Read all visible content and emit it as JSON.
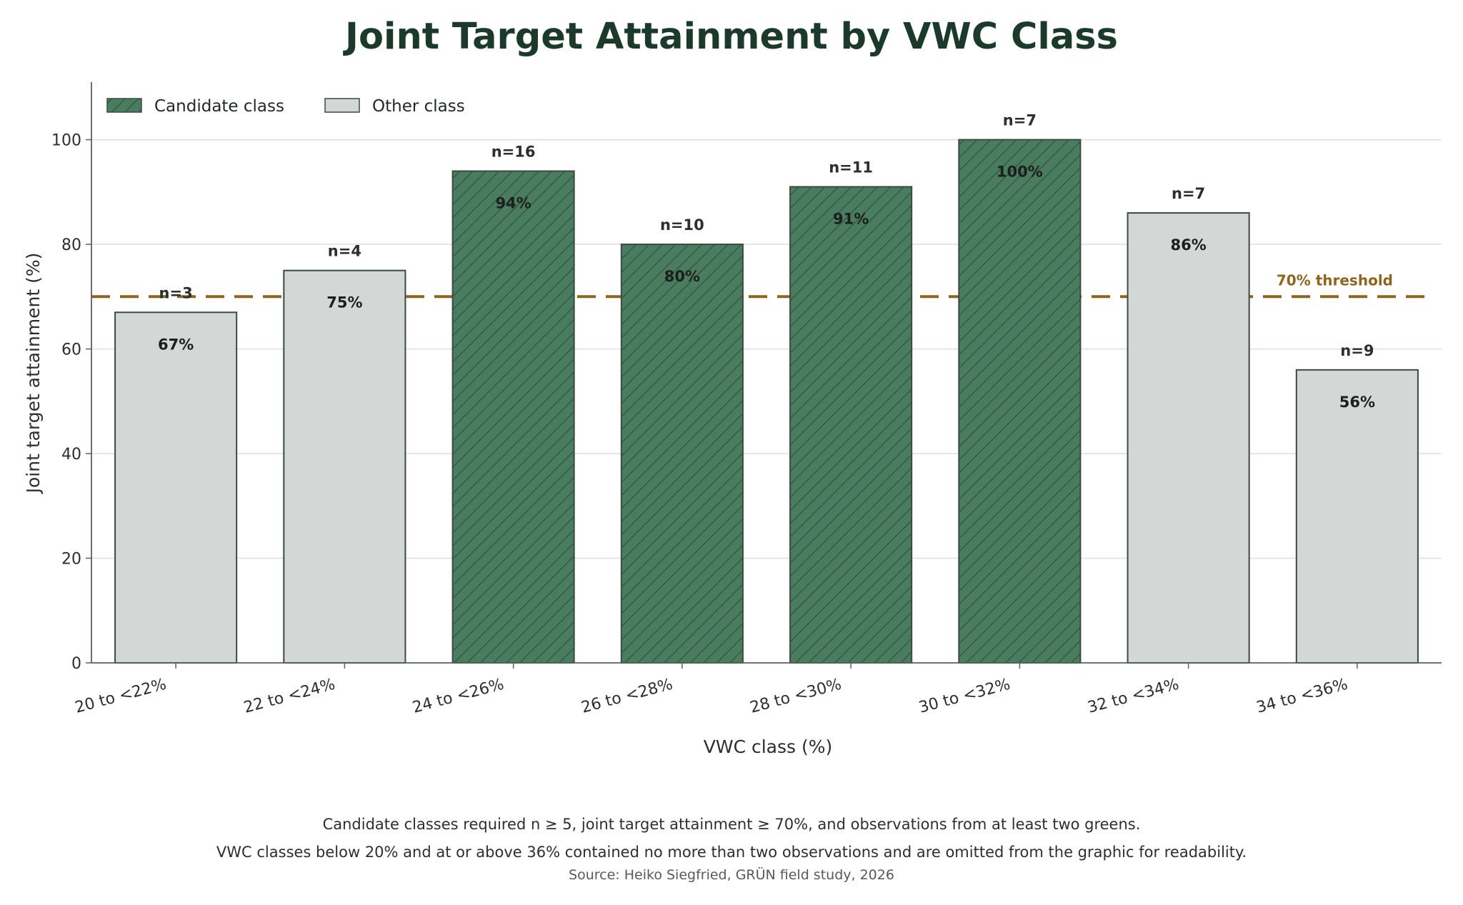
{
  "chart_data": {
    "type": "bar",
    "title": "Joint Target Attainment by VWC Class",
    "xlabel": "VWC class (%)",
    "ylabel": "Joint target attainment (%)",
    "ylim": [
      0,
      111
    ],
    "yticks": [
      0,
      20,
      40,
      60,
      80,
      100
    ],
    "grid": "horizontal",
    "categories": [
      "20 to <22%",
      "22 to <24%",
      "24 to <26%",
      "26 to <28%",
      "28 to <30%",
      "30 to <32%",
      "32 to <34%",
      "34 to <36%"
    ],
    "values": [
      67,
      75,
      94,
      80,
      91,
      100,
      86,
      56
    ],
    "value_labels": [
      "67%",
      "75%",
      "94%",
      "80%",
      "91%",
      "100%",
      "86%",
      "56%"
    ],
    "n_labels": [
      "n=3",
      "n=4",
      "n=16",
      "n=10",
      "n=11",
      "n=7",
      "n=7",
      "n=9"
    ],
    "group": [
      "Other class",
      "Other class",
      "Candidate class",
      "Candidate class",
      "Candidate class",
      "Candidate class",
      "Other class",
      "Other class"
    ],
    "legend": {
      "placement": "top-left",
      "entries": [
        {
          "name": "Candidate class",
          "color": "#4a7c5f",
          "hatch": true
        },
        {
          "name": "Other class",
          "color": "#d3d7d6",
          "hatch": false
        }
      ]
    },
    "threshold": {
      "value": 70,
      "label": "70% threshold",
      "color": "#8f6420",
      "style": "dashed"
    }
  },
  "colors": {
    "candidate_fill": "#4a7c5f",
    "other_fill": "#d3d7d6",
    "bar_edge": "#3c4a44",
    "title": "#1b3a2c",
    "threshold": "#8f6420"
  },
  "footnotes": [
    "Candidate classes required n ≥ 5, joint target attainment ≥ 70%, and observations from at least two greens.",
    "VWC classes below 20% and at or above 36% contained no more than two observations and are omitted from the graphic for readability."
  ],
  "source": "Source: Heiko Siegfried, GRÜN field study, 2026"
}
